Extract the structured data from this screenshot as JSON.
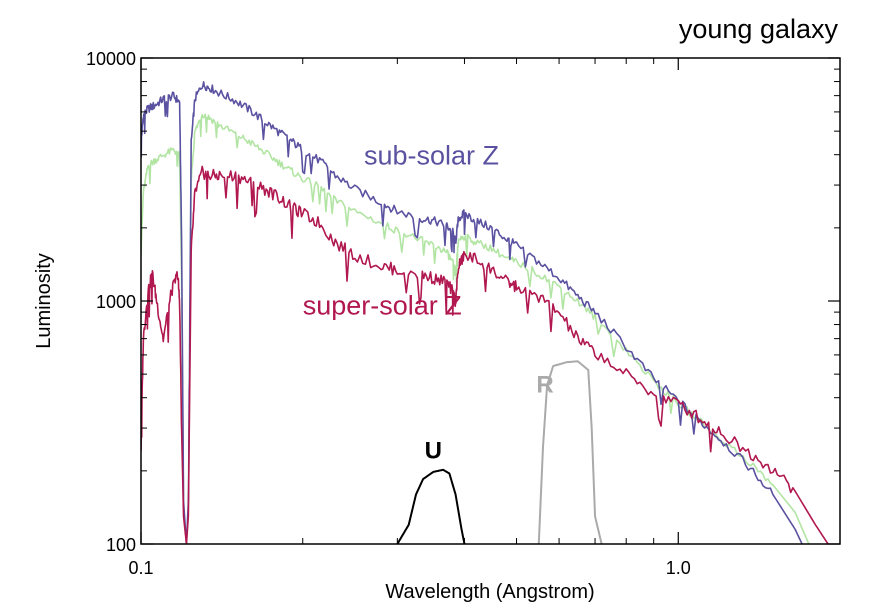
{
  "chart_data": {
    "type": "line",
    "title": "young galaxy",
    "xlabel": "Wavelength (Angstrom)",
    "ylabel": "Luminosity",
    "xscale": "log",
    "yscale": "log",
    "xlim": [
      0.1,
      2.0
    ],
    "ylim": [
      100,
      10000
    ],
    "x_ticks": [
      {
        "value": 0.1,
        "label": "0.1"
      },
      {
        "value": 1.0,
        "label": "1.0"
      }
    ],
    "y_ticks": [
      {
        "value": 100,
        "label": "100"
      },
      {
        "value": 1000,
        "label": "1000"
      },
      {
        "value": 10000,
        "label": "10000"
      }
    ],
    "grid": false,
    "series": [
      {
        "name": "sub-solar Z",
        "color": "#5a52a0",
        "label_pos": {
          "x": 0.26,
          "y": 3650
        },
        "points": [
          [
            0.1,
            4500
          ],
          [
            0.101,
            5800
          ],
          [
            0.103,
            6200
          ],
          [
            0.106,
            6400
          ],
          [
            0.11,
            6800
          ],
          [
            0.115,
            7000
          ],
          [
            0.118,
            6600
          ],
          [
            0.119,
            1800
          ],
          [
            0.12,
            150
          ],
          [
            0.1215,
            100
          ],
          [
            0.1225,
            150
          ],
          [
            0.124,
            4500
          ],
          [
            0.126,
            6800
          ],
          [
            0.13,
            7800
          ],
          [
            0.134,
            7600
          ],
          [
            0.14,
            7200
          ],
          [
            0.15,
            6700
          ],
          [
            0.16,
            6100
          ],
          [
            0.17,
            5500
          ],
          [
            0.18,
            5000
          ],
          [
            0.19,
            4600
          ],
          [
            0.2,
            4200
          ],
          [
            0.215,
            3800
          ],
          [
            0.23,
            3300
          ],
          [
            0.25,
            2900
          ],
          [
            0.28,
            2550
          ],
          [
            0.3,
            2350
          ],
          [
            0.33,
            2200
          ],
          [
            0.35,
            2150
          ],
          [
            0.37,
            2050
          ],
          [
            0.38,
            1950
          ],
          [
            0.385,
            1750
          ],
          [
            0.39,
            2200
          ],
          [
            0.4,
            2300
          ],
          [
            0.42,
            2150
          ],
          [
            0.45,
            2000
          ],
          [
            0.48,
            1800
          ],
          [
            0.5,
            1700
          ],
          [
            0.55,
            1450
          ],
          [
            0.6,
            1250
          ],
          [
            0.65,
            1050
          ],
          [
            0.7,
            900
          ],
          [
            0.8,
            650
          ],
          [
            0.9,
            480
          ],
          [
            1.0,
            390
          ],
          [
            1.1,
            320
          ],
          [
            1.2,
            270
          ],
          [
            1.35,
            210
          ],
          [
            1.5,
            160
          ],
          [
            1.65,
            115
          ],
          [
            1.7,
            100
          ]
        ]
      },
      {
        "name": "",
        "color": "#b2e5a4",
        "points": [
          [
            0.1,
            1600
          ],
          [
            0.101,
            2800
          ],
          [
            0.103,
            3600
          ],
          [
            0.106,
            3800
          ],
          [
            0.11,
            4000
          ],
          [
            0.115,
            4200
          ],
          [
            0.118,
            4000
          ],
          [
            0.119,
            1200
          ],
          [
            0.12,
            140
          ],
          [
            0.1215,
            100
          ],
          [
            0.1225,
            140
          ],
          [
            0.124,
            3200
          ],
          [
            0.126,
            5000
          ],
          [
            0.13,
            5900
          ],
          [
            0.134,
            5700
          ],
          [
            0.14,
            5300
          ],
          [
            0.15,
            4900
          ],
          [
            0.16,
            4500
          ],
          [
            0.17,
            4100
          ],
          [
            0.18,
            3750
          ],
          [
            0.19,
            3450
          ],
          [
            0.2,
            3200
          ],
          [
            0.215,
            2950
          ],
          [
            0.23,
            2600
          ],
          [
            0.25,
            2350
          ],
          [
            0.28,
            2100
          ],
          [
            0.3,
            1950
          ],
          [
            0.33,
            1800
          ],
          [
            0.35,
            1700
          ],
          [
            0.37,
            1600
          ],
          [
            0.38,
            1450
          ],
          [
            0.385,
            1300
          ],
          [
            0.39,
            1800
          ],
          [
            0.4,
            1850
          ],
          [
            0.42,
            1750
          ],
          [
            0.45,
            1650
          ],
          [
            0.48,
            1500
          ],
          [
            0.5,
            1450
          ],
          [
            0.55,
            1300
          ],
          [
            0.6,
            1150
          ],
          [
            0.65,
            1000
          ],
          [
            0.7,
            860
          ],
          [
            0.8,
            630
          ],
          [
            0.9,
            470
          ],
          [
            1.0,
            380
          ],
          [
            1.1,
            320
          ],
          [
            1.2,
            270
          ],
          [
            1.35,
            220
          ],
          [
            1.5,
            175
          ],
          [
            1.65,
            135
          ],
          [
            1.75,
            100
          ]
        ]
      },
      {
        "name": "super-solar Z",
        "color": "#b0184f",
        "label_pos": {
          "x": 0.2,
          "y": 880
        },
        "points": [
          [
            0.1,
            250
          ],
          [
            0.101,
            700
          ],
          [
            0.103,
            1100
          ],
          [
            0.105,
            1300
          ],
          [
            0.107,
            1000
          ],
          [
            0.11,
            700
          ],
          [
            0.114,
            1100
          ],
          [
            0.117,
            1300
          ],
          [
            0.118,
            1000
          ],
          [
            0.119,
            300
          ],
          [
            0.12,
            130
          ],
          [
            0.1215,
            100
          ],
          [
            0.1225,
            130
          ],
          [
            0.124,
            1600
          ],
          [
            0.126,
            2800
          ],
          [
            0.13,
            3400
          ],
          [
            0.134,
            3300
          ],
          [
            0.14,
            3300
          ],
          [
            0.15,
            3300
          ],
          [
            0.16,
            3100
          ],
          [
            0.17,
            2900
          ],
          [
            0.18,
            2700
          ],
          [
            0.19,
            2450
          ],
          [
            0.2,
            2300
          ],
          [
            0.215,
            2100
          ],
          [
            0.23,
            1750
          ],
          [
            0.25,
            1550
          ],
          [
            0.28,
            1400
          ],
          [
            0.3,
            1350
          ],
          [
            0.33,
            1300
          ],
          [
            0.35,
            1250
          ],
          [
            0.37,
            1200
          ],
          [
            0.38,
            1100
          ],
          [
            0.385,
            1000
          ],
          [
            0.39,
            1400
          ],
          [
            0.4,
            1550
          ],
          [
            0.42,
            1500
          ],
          [
            0.45,
            1350
          ],
          [
            0.48,
            1200
          ],
          [
            0.5,
            1150
          ],
          [
            0.55,
            1050
          ],
          [
            0.6,
            900
          ],
          [
            0.65,
            700
          ],
          [
            0.7,
            620
          ],
          [
            0.8,
            500
          ],
          [
            0.9,
            420
          ],
          [
            1.0,
            380
          ],
          [
            1.1,
            330
          ],
          [
            1.2,
            290
          ],
          [
            1.35,
            240
          ],
          [
            1.5,
            205
          ],
          [
            1.65,
            165
          ],
          [
            1.8,
            120
          ],
          [
            1.9,
            100
          ]
        ]
      }
    ],
    "filters": [
      {
        "name": "U",
        "color": "#000000",
        "label_pos": {
          "x": 0.35,
          "y": 225
        },
        "points": [
          [
            0.3,
            100
          ],
          [
            0.315,
            120
          ],
          [
            0.325,
            160
          ],
          [
            0.335,
            185
          ],
          [
            0.35,
            198
          ],
          [
            0.365,
            202
          ],
          [
            0.375,
            195
          ],
          [
            0.385,
            160
          ],
          [
            0.395,
            115
          ],
          [
            0.4,
            100
          ]
        ]
      },
      {
        "name": "R",
        "color": "#aaaaaa",
        "label_pos": {
          "x": 0.565,
          "y": 420
        },
        "points": [
          [
            0.55,
            100
          ],
          [
            0.56,
            250
          ],
          [
            0.57,
            450
          ],
          [
            0.585,
            540
          ],
          [
            0.62,
            560
          ],
          [
            0.65,
            565
          ],
          [
            0.68,
            520
          ],
          [
            0.69,
            300
          ],
          [
            0.7,
            130
          ],
          [
            0.72,
            100
          ]
        ]
      }
    ]
  }
}
